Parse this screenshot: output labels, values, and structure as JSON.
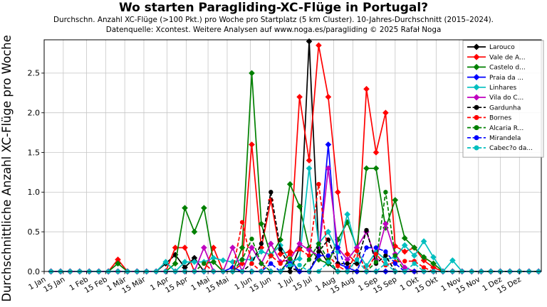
{
  "figure": {
    "title": "Wo starten Paragliding-XC-Flüge in Portugal?",
    "subtitle_line1": "Durchschn. Anzahl XC-Flüge (>100 Pkt.) pro Woche pro Startplatz (5 km Cluster). 10-Jahres-Durchschnitt (2015–2024).",
    "subtitle_line2": "Datenquelle: Xcontest. Weitere Analysen auf www.noga.es/paragliding © 2025 Rafał Noga"
  },
  "chart_data": {
    "type": "line",
    "title": "Wo starten Paragliding-XC-Flüge in Portugal?",
    "xlabel": "",
    "ylabel": "Durchschnittliche Anzahl XC-Flüge pro Woche",
    "x_unit": "week_of_year_1_to_52",
    "weeks_not_listed_value": 0,
    "ylim": [
      0,
      2.92
    ],
    "yticks": [
      "0.0",
      "0.5",
      "1.0",
      "1.5",
      "2.0",
      "2.5"
    ],
    "xtick_labels": [
      "1 Jan",
      "15 Jan",
      "1 Feb",
      "15 Feb",
      "1 Mär",
      "15 Mär",
      "1 Apr",
      "15 Apr",
      "1 Mai",
      "15 Mai",
      "1 Jun",
      "15 Jun",
      "1 Jul",
      "15 Jul",
      "1 Aug",
      "15 Aug",
      "1 Sep",
      "15 Sep",
      "1 Okt",
      "15 Okt",
      "1 Nov",
      "15 Nov",
      "1 Dez",
      "15 Dez"
    ],
    "grid": true,
    "legend_position": "upper right",
    "series": [
      {
        "name": "Larouco",
        "color": "#000000",
        "line_style": "solid",
        "marker": "diamond",
        "weekly_values": {
          "13": 0.1,
          "14": 0.21,
          "15": 0.05,
          "16": 0.17,
          "27": 0.3,
          "28": 2.9,
          "29": 0.3,
          "30": 0.1
        }
      },
      {
        "name": "Vale de A...",
        "color": "#ff0000",
        "line_style": "solid",
        "marker": "diamond",
        "weekly_values": {
          "8": 0.15,
          "14": 0.3,
          "15": 0.3,
          "18": 0.3,
          "21": 0.1,
          "22": 1.6,
          "23": 0.3,
          "24": 0.9,
          "25": 0.22,
          "26": 0.25,
          "27": 2.2,
          "28": 1.4,
          "29": 2.85,
          "30": 2.2,
          "31": 1.0,
          "32": 0.22,
          "33": 0.1,
          "34": 2.3,
          "35": 1.5,
          "36": 2.0,
          "37": 0.32,
          "38": 0.25,
          "39": 0.3,
          "40": 0.14,
          "41": 0.05
        }
      },
      {
        "name": "Castelo d...",
        "color": "#008000",
        "line_style": "solid",
        "marker": "diamond",
        "weekly_values": {
          "8": 0.1,
          "14": 0.1,
          "15": 0.8,
          "16": 0.5,
          "17": 0.8,
          "18": 0.12,
          "21": 0.3,
          "22": 2.5,
          "23": 0.6,
          "24": 0.2,
          "25": 0.4,
          "26": 1.1,
          "27": 0.82,
          "28": 0.3,
          "29": 0.15,
          "30": 0.1,
          "31": 0.4,
          "32": 0.62,
          "33": 0.3,
          "34": 1.3,
          "35": 1.3,
          "36": 0.55,
          "37": 0.9,
          "38": 0.42,
          "39": 0.3,
          "40": 0.18,
          "41": 0.1
        }
      },
      {
        "name": "Praia da ...",
        "color": "#0000ff",
        "line_style": "solid",
        "marker": "diamond",
        "weekly_values": {
          "20": 0.05,
          "26": 0.15,
          "29": 0.2,
          "30": 1.6,
          "31": 0.1,
          "32": 0.05
        }
      },
      {
        "name": "Linhares",
        "color": "#00bfbf",
        "line_style": "solid",
        "marker": "diamond",
        "weekly_values": {
          "13": 0.12,
          "15": 0.12,
          "16": 0.12,
          "17": 0.12,
          "18": 0.17,
          "19": 0.14,
          "20": 0.12,
          "21": 0.15,
          "22": 0.15,
          "23": 0.25,
          "24": 0.21,
          "25": 0.33,
          "26": 0.12,
          "27": 0.16,
          "28": 1.3,
          "29": 0.35,
          "30": 0.5,
          "31": 0.25,
          "32": 0.72,
          "33": 0.26,
          "34": 0.07,
          "35": 0.25,
          "36": 0.15,
          "37": 0.18,
          "38": 0.33,
          "39": 0.2,
          "40": 0.38,
          "41": 0.18,
          "43": 0.14
        }
      },
      {
        "name": "Vila do C...",
        "color": "#bf00bf",
        "line_style": "solid",
        "marker": "diamond",
        "weekly_values": {
          "17": 0.3,
          "20": 0.3,
          "22": 0.3,
          "23": 0.1,
          "24": 0.35,
          "25": 0.12,
          "26": 0.15,
          "27": 0.35,
          "28": 0.27,
          "29": 0.2,
          "30": 1.3,
          "31": 0.3,
          "32": 0.15,
          "33": 0.3,
          "34": 0.5,
          "35": 0.15,
          "36": 0.6,
          "37": 0.22,
          "38": 0.05
        }
      },
      {
        "name": "Gardunha",
        "color": "#000000",
        "line_style": "dashed",
        "marker": "circle",
        "weekly_values": {
          "22": 0.1,
          "23": 0.35,
          "24": 1.0,
          "25": 0.28,
          "26": 0.05,
          "29": 0.25,
          "30": 0.4,
          "31": 0.1,
          "32": 0.1,
          "33": 0.1,
          "34": 0.52,
          "35": 0.1,
          "36": 0.2
        }
      },
      {
        "name": "Bornes",
        "color": "#ff0000",
        "line_style": "dashed",
        "marker": "circle",
        "weekly_values": {
          "17": 0.1,
          "21": 0.62,
          "22": 0.1,
          "24": 0.2,
          "25": 0.1,
          "26": 0.22,
          "27": 0.28,
          "28": 0.2,
          "29": 1.1,
          "30": 0.2,
          "31": 0.07,
          "33": 0.26,
          "35": 0.22,
          "36": 0.08,
          "37": 0.12,
          "38": 0.13,
          "39": 0.13,
          "40": 0.05
        }
      },
      {
        "name": "Alcaria R...",
        "color": "#008000",
        "line_style": "dashed",
        "marker": "circle",
        "weekly_values": {
          "17": 0.1,
          "18": 0.12,
          "21": 0.15,
          "22": 0.41,
          "23": 0.1,
          "26": 0.16,
          "28": 0.15,
          "29": 0.35,
          "30": 0.15,
          "35": 0.12,
          "36": 1.0,
          "37": 0.2
        }
      },
      {
        "name": "Mirandela",
        "color": "#0000ff",
        "line_style": "dashed",
        "marker": "circle",
        "weekly_values": {
          "24": 0.1,
          "26": 0.1,
          "29": 0.2,
          "30": 0.2,
          "31": 0.3,
          "34": 0.3,
          "35": 0.3,
          "36": 0.25,
          "37": 0.1
        }
      },
      {
        "name": "Cabec?o da...",
        "color": "#00bfbf",
        "line_style": "dashed",
        "marker": "circle",
        "weekly_values": {
          "26": 0.08,
          "27": 0.08,
          "30": 0.12,
          "33": 0.15,
          "36": 0.1,
          "39": 0.1
        }
      }
    ]
  }
}
